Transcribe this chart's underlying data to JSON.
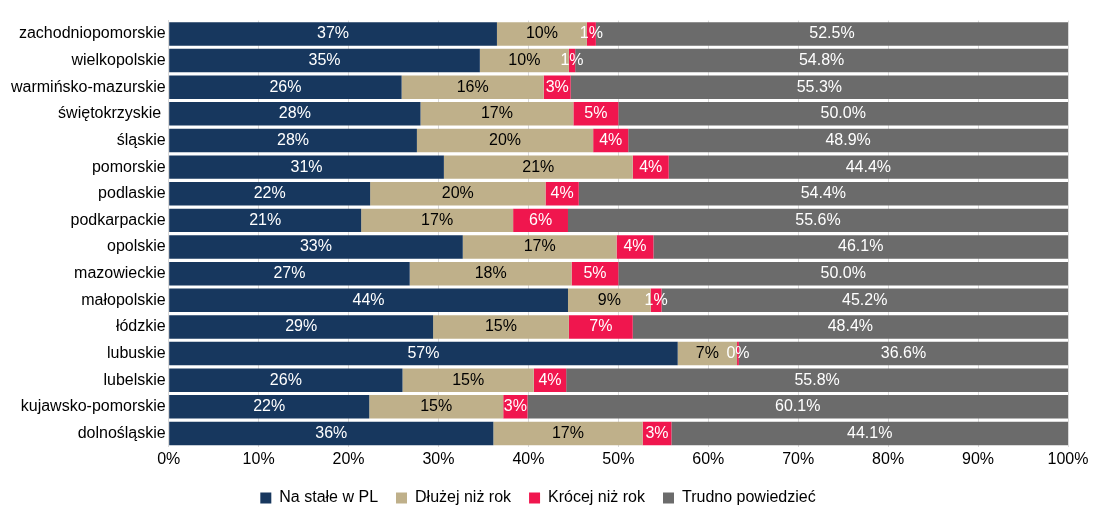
{
  "chart_data": {
    "type": "bar",
    "orientation": "horizontal",
    "stacked": true,
    "categories": [
      "zachodniopomorskie",
      "wielkopolskie",
      "warmińsko-mazurskie",
      "świętokrzyskie ",
      "śląskie",
      "pomorskie",
      "podlaskie",
      "podkarpackie",
      "opolskie",
      "mazowieckie",
      "małopolskie",
      "łódzkie",
      "lubuskie",
      "lubelskie",
      "kujawsko-pomorskie",
      "dolnośląskie"
    ],
    "series": [
      {
        "name": "Na stałe w PL",
        "color": "#17375e",
        "values": [
          36.5,
          34.6,
          25.9,
          28,
          27.6,
          30.6,
          22.4,
          21.4,
          32.7,
          26.8,
          44.4,
          29.4,
          56.6,
          26.0,
          22.3,
          36.1
        ],
        "value_labels": [
          "37%",
          "35%",
          "26%",
          "28%",
          "28%",
          "31%",
          "22%",
          "21%",
          "33%",
          "27%",
          "44%",
          "29%",
          "57%",
          "26%",
          "22%",
          "36%"
        ]
      },
      {
        "name": "Dłużej niż rok",
        "color": "#bfb08a",
        "values": [
          10,
          9.9,
          15.8,
          17,
          19.6,
          21.0,
          19.5,
          16.9,
          17.1,
          18.0,
          9.2,
          15.1,
          6.6,
          14.6,
          14.9,
          16.6
        ],
        "value_labels": [
          "10%",
          "10%",
          "16%",
          "17%",
          "20%",
          "21%",
          "20%",
          "17%",
          "17%",
          "18%",
          "9%",
          "15%",
          "7%",
          "15%",
          "15%",
          "17%"
        ]
      },
      {
        "name": "Krócej niż rok",
        "color": "#f0164e",
        "values": [
          1,
          0.7,
          3.0,
          5,
          3.9,
          4.0,
          3.7,
          6.1,
          4.1,
          5.2,
          1.2,
          7.1,
          0.2,
          3.6,
          2.7,
          3.2
        ],
        "value_labels": [
          "1%",
          "1%",
          "3%",
          "5%",
          "4%",
          "4%",
          "4%",
          "6%",
          "4%",
          "5%",
          "1%",
          "7%",
          "0%",
          "4%",
          "3%",
          "3%"
        ]
      },
      {
        "name": "Trudno powiedzieć",
        "color": "#6b6b6b",
        "values": [
          52.5,
          54.8,
          55.3,
          50.0,
          48.9,
          44.4,
          54.4,
          55.6,
          46.1,
          50.0,
          45.2,
          48.4,
          36.6,
          55.8,
          60.1,
          44.1
        ],
        "value_labels": [
          "52.5%",
          "54.8%",
          "55.3%",
          "50.0%",
          "48.9%",
          "44.4%",
          "54.4%",
          "55.6%",
          "46.1%",
          "50.0%",
          "45.2%",
          "48.4%",
          "36.6%",
          "55.8%",
          "60.1%",
          "44.1%"
        ]
      }
    ],
    "xlim": [
      0,
      100
    ],
    "xticks": [
      {
        "value": 0,
        "label": "0%"
      },
      {
        "value": 10,
        "label": "10%"
      },
      {
        "value": 20,
        "label": "20%"
      },
      {
        "value": 30,
        "label": "30%"
      },
      {
        "value": 40,
        "label": "40%"
      },
      {
        "value": 50,
        "label": "50%"
      },
      {
        "value": 60,
        "label": "60%"
      },
      {
        "value": 70,
        "label": "70%"
      },
      {
        "value": 80,
        "label": "80%"
      },
      {
        "value": 90,
        "label": "90%"
      },
      {
        "value": 100,
        "label": "100%"
      }
    ],
    "grid": "x",
    "legend": "bottom"
  }
}
